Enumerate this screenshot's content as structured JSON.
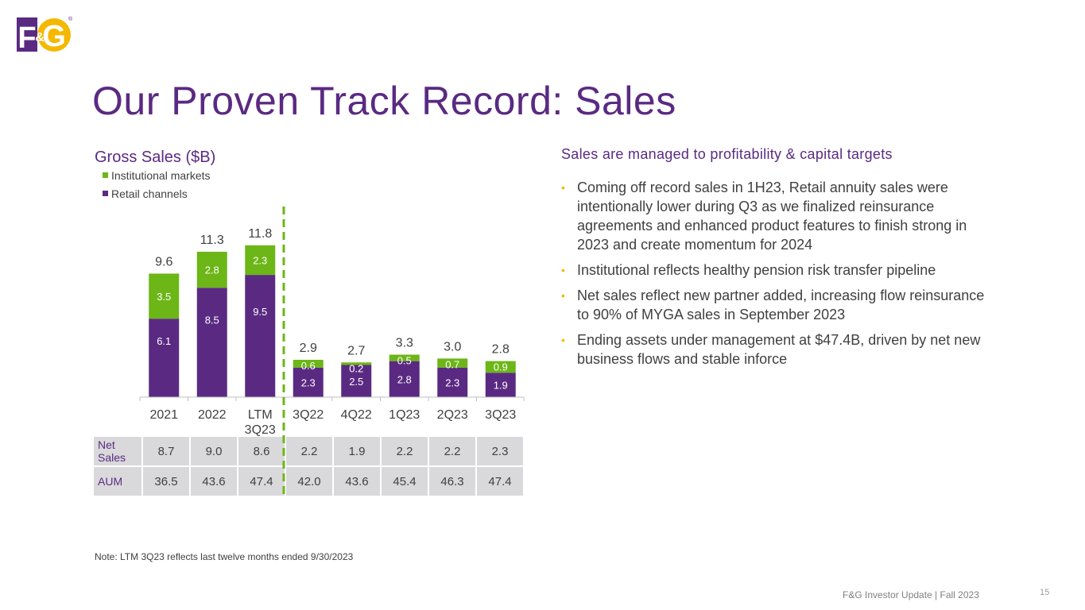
{
  "logo": {
    "text_left": "F",
    "text_mid": "&",
    "text_right": "G",
    "registered": "®"
  },
  "title": "Our Proven Track Record: Sales",
  "chart_data": {
    "type": "bar",
    "stacked": true,
    "title": "Gross Sales ($B)",
    "categories": [
      "2021",
      "2022",
      "LTM 3Q23",
      "3Q22",
      "4Q22",
      "1Q23",
      "2Q23",
      "3Q23"
    ],
    "category_lines": [
      [
        "2021"
      ],
      [
        "2022"
      ],
      [
        "LTM",
        "3Q23"
      ],
      [
        "3Q22"
      ],
      [
        "4Q22"
      ],
      [
        "1Q23"
      ],
      [
        "2Q23"
      ],
      [
        "3Q23"
      ]
    ],
    "series": [
      {
        "name": "Retail channels",
        "color": "#5a2a82",
        "values": [
          6.1,
          8.5,
          9.5,
          2.3,
          2.5,
          2.8,
          2.3,
          1.9
        ],
        "labels": [
          "6.1",
          "8.5",
          "9.5",
          "2.3",
          "2.5",
          "2.8",
          "2.3",
          "1.9"
        ]
      },
      {
        "name": "Institutional markets",
        "color": "#6cb617",
        "values": [
          3.5,
          2.8,
          2.3,
          0.6,
          0.2,
          0.5,
          0.7,
          0.9
        ],
        "labels": [
          "3.5",
          "2.8",
          "2.3",
          "0.6",
          "0.2",
          "0.5",
          "0.7",
          "0.9"
        ]
      }
    ],
    "totals": [
      "9.6",
      "11.3",
      "11.8",
      "2.9",
      "2.7",
      "3.3",
      "3.0",
      "2.8"
    ],
    "legend_order": [
      "Institutional markets",
      "Retail channels"
    ],
    "legend_position": "top-left",
    "ylim": [
      0,
      12.5
    ],
    "divider_after_category": 3,
    "divider_color": "#6cb617"
  },
  "table": {
    "rows": [
      {
        "label": "Net Sales",
        "values": [
          "8.7",
          "9.0",
          "8.6",
          "2.2",
          "1.9",
          "2.2",
          "2.2",
          "2.3"
        ]
      },
      {
        "label": "AUM",
        "values": [
          "36.5",
          "43.6",
          "47.4",
          "42.0",
          "43.6",
          "45.4",
          "46.3",
          "47.4"
        ]
      }
    ]
  },
  "right_panel": {
    "heading": "Sales are managed to profitability & capital targets",
    "bullets": [
      "Coming off record sales in 1H23, Retail annuity sales were intentionally lower during Q3 as we finalized reinsurance agreements and enhanced product features to finish strong in 2023 and create momentum for 2024",
      "Institutional reflects healthy pension risk transfer pipeline",
      "Net sales reflect new partner added, increasing flow reinsurance to 90% of MYGA sales in September 2023",
      "Ending assets under management at $47.4B, driven by net new business flows and stable inforce"
    ]
  },
  "note": "Note: LTM 3Q23 reflects last twelve months ended 9/30/2023",
  "footer": "F&G Investor Update | Fall 2023",
  "page_number": "15",
  "colors": {
    "purple": "#5a2a82",
    "green": "#6cb617",
    "yellow": "#f5b800"
  }
}
